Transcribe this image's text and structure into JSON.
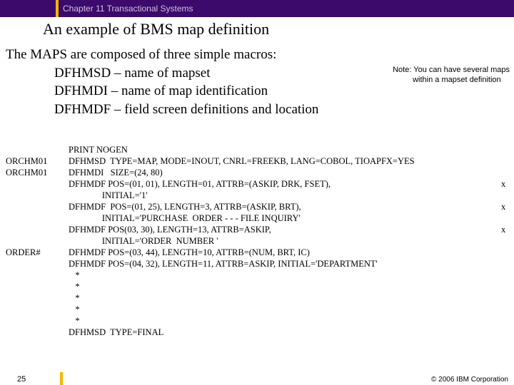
{
  "colors": {
    "header_bg": "#3b0a6b",
    "accent": "#f5b500",
    "header_text": "#d0c0e0",
    "body_text": "#000000",
    "bg": "#ffffff"
  },
  "fonts": {
    "serif": "Times New Roman",
    "sans": "Verdana",
    "title_size": 22,
    "body_size": 19,
    "code_size": 12.5,
    "note_size": 11,
    "footer_size": 10
  },
  "header": {
    "chapter": "Chapter 11 Transactional Systems"
  },
  "title": "An example of BMS map definition",
  "intro": {
    "lead": "The MAPS are composed of three simple macros:",
    "lines": [
      "DFHMSD – name of mapset",
      "DFHMDI – name of map identification",
      "DFHMDF – field screen definitions and location"
    ]
  },
  "note": {
    "l1": "Note: You can have several maps",
    "l2": "within a mapset definition"
  },
  "code": {
    "rows": [
      {
        "label": "",
        "text": "PRINT NOGEN",
        "x": ""
      },
      {
        "label": "ORCHM01",
        "text": "DFHMSD  TYPE=MAP, MODE=INOUT, CNRL=FREEKB, LANG=COBOL, TIOAPFX=YES",
        "x": ""
      },
      {
        "label": "ORCHM01",
        "text": "DFHMDI   SIZE=(24, 80)",
        "x": ""
      },
      {
        "label": "",
        "text": "DFHMDF POS=(01, 01), LENGTH=01, ATTRB=(ASKIP, DRK, FSET),",
        "x": "x"
      },
      {
        "label": "",
        "text": "               INITIAL='1'",
        "x": ""
      },
      {
        "label": "",
        "text": "DFHMDF  POS=(01, 25), LENGTH=3, ATTRB=(ASKIP, BRT),",
        "x": "x"
      },
      {
        "label": "",
        "text": "               INITIAL='PURCHASE  ORDER - - - FILE INQUIRY'",
        "x": ""
      },
      {
        "label": "",
        "text": "DFHMDF POS(03, 30), LENGTH=13, ATTRB=ASKIP,",
        "x": "x"
      },
      {
        "label": "",
        "text": "               INITIAL='ORDER  NUMBER '",
        "x": ""
      },
      {
        "label": "ORDER#",
        "text": "DFHMDF POS=(03, 44), LENGTH=10, ATTRB=(NUM, BRT, IC)",
        "x": ""
      },
      {
        "label": "",
        "text": "DFHMDF POS=(04, 32), LENGTH=11, ATTRB=ASKIP, INITIAL='DEPARTMENT'",
        "x": ""
      },
      {
        "label": "",
        "text": "   *",
        "x": ""
      },
      {
        "label": "",
        "text": "   *",
        "x": ""
      },
      {
        "label": "",
        "text": "   *",
        "x": ""
      },
      {
        "label": "",
        "text": "   *",
        "x": ""
      },
      {
        "label": "",
        "text": "   *",
        "x": ""
      },
      {
        "label": "",
        "text": "DFHMSD  TYPE=FINAL",
        "x": ""
      }
    ]
  },
  "footer": {
    "page": "25",
    "copyright": "© 2006 IBM Corporation"
  }
}
